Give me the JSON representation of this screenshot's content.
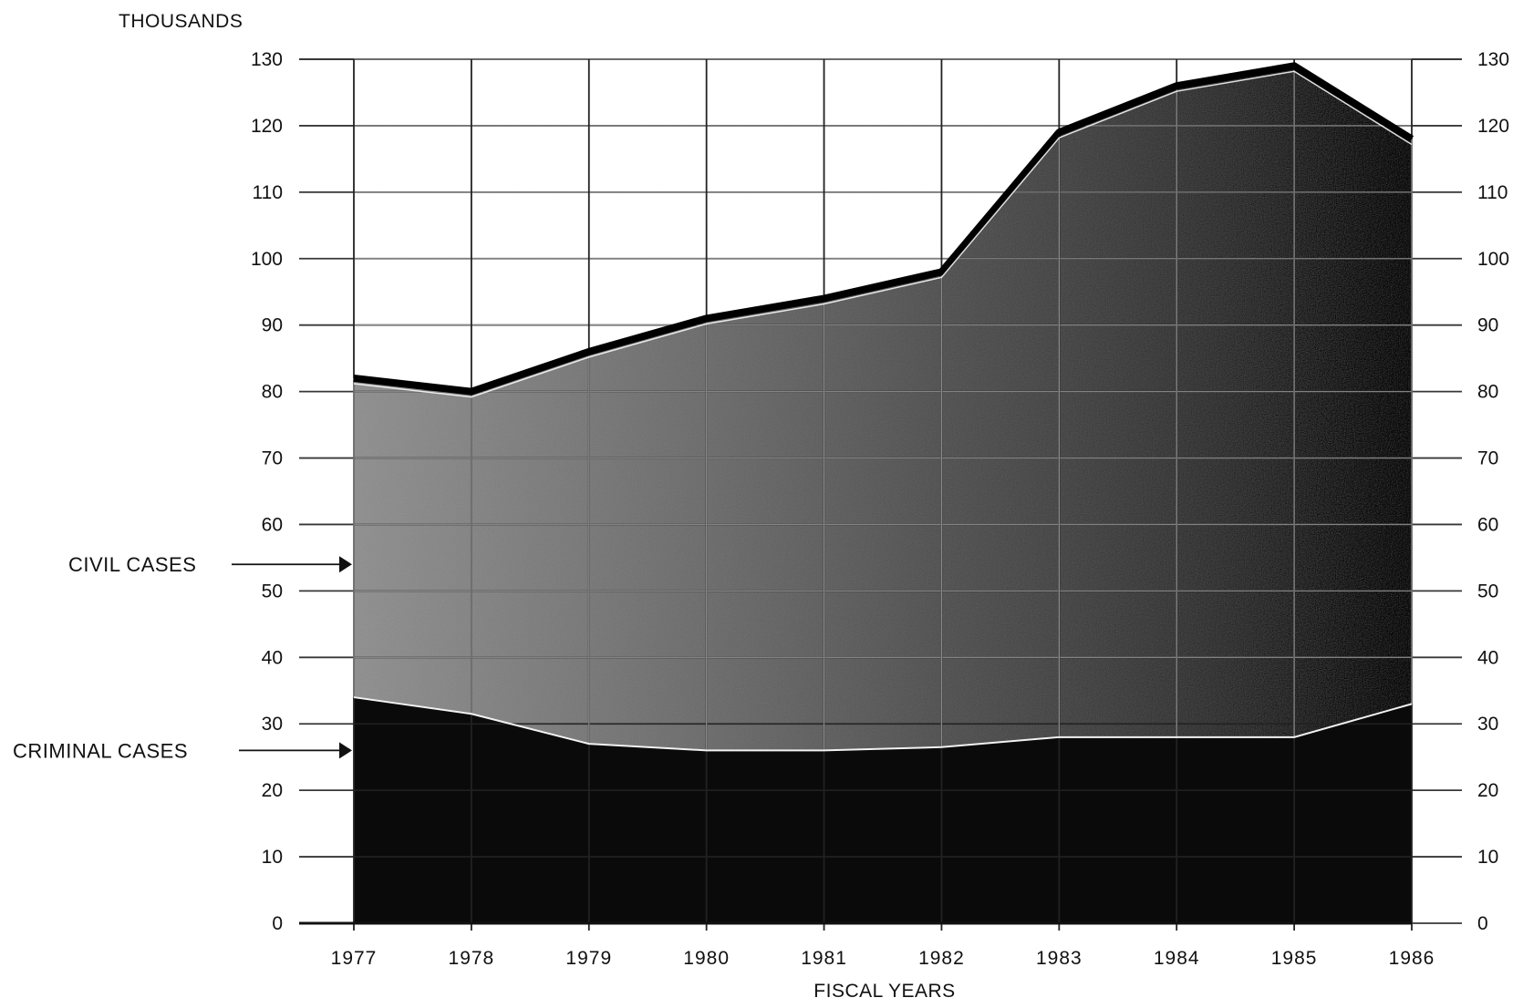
{
  "chart_data": {
    "type": "area",
    "stacked": true,
    "title": "",
    "ylabel": "THOUSANDS",
    "xlabel": "FISCAL YEARS",
    "categories": [
      "1977",
      "1978",
      "1979",
      "1980",
      "1981",
      "1982",
      "1983",
      "1984",
      "1985",
      "1986"
    ],
    "ylim": [
      0,
      130
    ],
    "yticks": [
      0,
      10,
      20,
      30,
      40,
      50,
      60,
      70,
      80,
      90,
      100,
      110,
      120,
      130
    ],
    "ytick_labels": [
      "0",
      "10",
      "20",
      "30",
      "40",
      "50",
      "60",
      "70",
      "80",
      "90",
      "100",
      "110",
      "120",
      "130"
    ],
    "grid": true,
    "series": [
      {
        "name": "CRIMINAL CASES",
        "values": [
          34,
          31.5,
          27,
          26,
          26,
          26.5,
          28,
          28,
          28,
          33
        ],
        "color": "#0a0a0a"
      },
      {
        "name": "CIVIL CASES",
        "values": [
          48,
          48.5,
          59,
          65,
          68,
          71.5,
          91,
          98,
          101,
          85
        ],
        "color": "#5a5a5a"
      }
    ],
    "totals": [
      82,
      80,
      86,
      91,
      94,
      98,
      119,
      126,
      129,
      118
    ]
  }
}
